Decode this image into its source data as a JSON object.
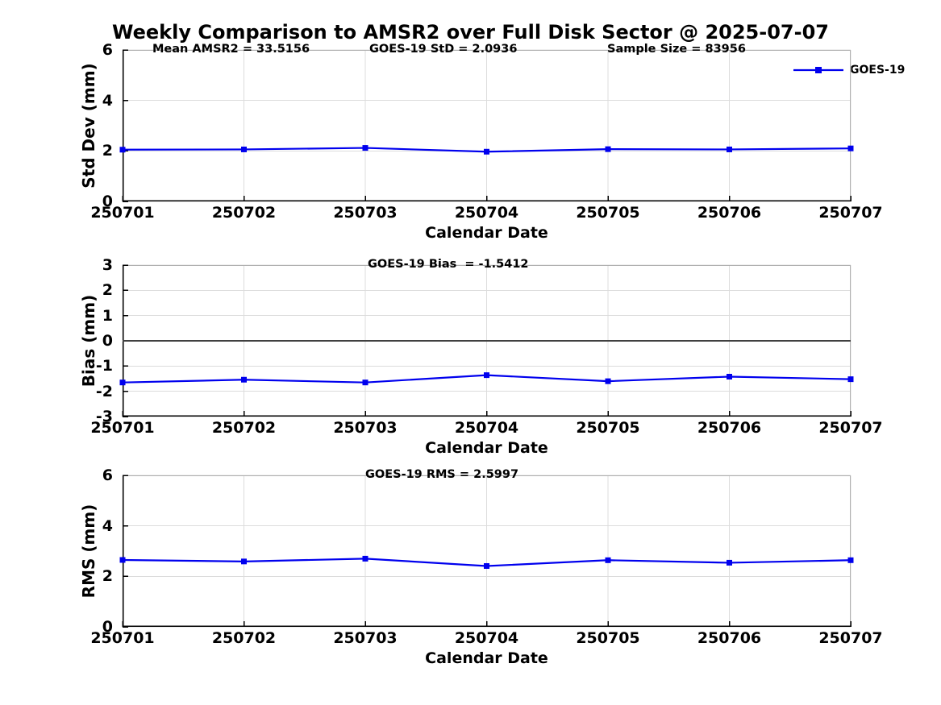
{
  "title": "Weekly Comparison to AMSR2 over Full Disk Sector @ 2025-07-07",
  "legend": {
    "label": "GOES-19",
    "marker": "filled-square",
    "line_color": "#0000EE"
  },
  "colors": {
    "series": "#0000EE",
    "grid": "#DCDCDC",
    "box_spines": "#AFAFAF",
    "axis_spines": "#000000",
    "zero_line": "#404040",
    "text": "#000000",
    "background": "#FFFFFF"
  },
  "chart_data": [
    {
      "type": "line",
      "panel": "std-dev",
      "categories": [
        "250701",
        "250702",
        "250703",
        "250704",
        "250705",
        "250706",
        "250707"
      ],
      "series": [
        {
          "name": "GOES-19",
          "color": "#0000EE",
          "marker": "square",
          "values": [
            2.05,
            2.06,
            2.12,
            1.97,
            2.07,
            2.06,
            2.1
          ]
        }
      ],
      "annotations": [
        "Mean AMSR2 = 33.5156",
        "GOES-19 StD = 2.0936",
        "Sample Size = 83956"
      ],
      "xlabel": "Calendar Date",
      "ylabel": "Std Dev (mm)",
      "ylim": [
        0,
        6
      ],
      "yticks": [
        0,
        2,
        4,
        6
      ],
      "grid": true,
      "legend_position": "upper-right-outside",
      "zero_line": false
    },
    {
      "type": "line",
      "panel": "bias",
      "categories": [
        "250701",
        "250702",
        "250703",
        "250704",
        "250705",
        "250706",
        "250707"
      ],
      "series": [
        {
          "name": "GOES-19",
          "color": "#0000EE",
          "marker": "square",
          "values": [
            -1.65,
            -1.54,
            -1.65,
            -1.36,
            -1.6,
            -1.42,
            -1.52
          ]
        }
      ],
      "annotations": [
        "GOES-19 Bias  = -1.5412"
      ],
      "xlabel": "Calendar Date",
      "ylabel": "Bias (mm)",
      "ylim": [
        -3,
        3
      ],
      "yticks": [
        -3,
        -2,
        -1,
        0,
        1,
        2,
        3
      ],
      "grid": true,
      "zero_line": true
    },
    {
      "type": "line",
      "panel": "rms",
      "categories": [
        "250701",
        "250702",
        "250703",
        "250704",
        "250705",
        "250706",
        "250707"
      ],
      "series": [
        {
          "name": "GOES-19",
          "color": "#0000EE",
          "marker": "square",
          "values": [
            2.65,
            2.59,
            2.7,
            2.41,
            2.64,
            2.54,
            2.64
          ]
        }
      ],
      "annotations": [
        "GOES-19 RMS = 2.5997"
      ],
      "xlabel": "Calendar Date",
      "ylabel": "RMS (mm)",
      "ylim": [
        0,
        6
      ],
      "yticks": [
        0,
        2,
        4,
        6
      ],
      "grid": true,
      "zero_line": false
    }
  ]
}
